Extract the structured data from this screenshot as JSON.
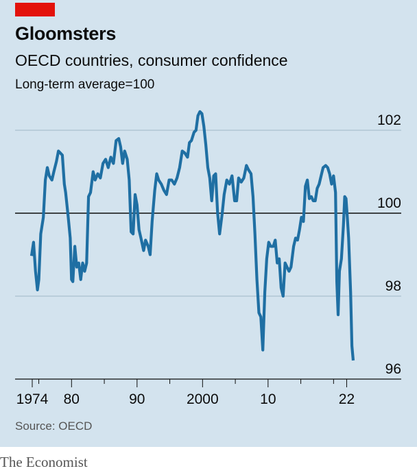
{
  "header": {
    "title": "Gloomsters",
    "subtitle": "OECD countries, consumer confidence",
    "note": "Long-term average=100"
  },
  "footer": {
    "source": "Source: OECD",
    "brand": "The Economist"
  },
  "colors": {
    "background": "#d3e3ee",
    "line": "#1f6fa3",
    "accent_tag": "#e3120b",
    "grid": "#9fb7c5",
    "baseline": "#0c0c0c"
  },
  "chart_data": {
    "type": "line",
    "title": "Gloomsters",
    "subtitle": "OECD countries, consumer confidence",
    "ylabel": "Long-term average=100",
    "ylim": [
      96,
      102
    ],
    "yticks": [
      96,
      98,
      100,
      102
    ],
    "reference_line": 100,
    "xlim": [
      1973.5,
      2023
    ],
    "xticks": [
      1974,
      1980,
      1990,
      2000,
      2010,
      2022
    ],
    "xtick_labels": [
      "1974",
      "80",
      "90",
      "2000",
      "10",
      "22"
    ],
    "grid": "horizontal",
    "series": [
      {
        "values": [
          [
            1973.9,
            98.97
          ],
          [
            1974.2,
            99.3
          ],
          [
            1974.5,
            98.6
          ],
          [
            1974.8,
            98.15
          ],
          [
            1975.0,
            98.4
          ],
          [
            1975.3,
            99.5
          ],
          [
            1975.7,
            99.9
          ],
          [
            1976.0,
            100.8
          ],
          [
            1976.3,
            101.1
          ],
          [
            1976.6,
            100.9
          ],
          [
            1977.0,
            100.8
          ],
          [
            1977.3,
            101.0
          ],
          [
            1977.7,
            101.25
          ],
          [
            1978.0,
            101.5
          ],
          [
            1978.3,
            101.45
          ],
          [
            1978.6,
            101.4
          ],
          [
            1978.9,
            100.7
          ],
          [
            1979.1,
            100.5
          ],
          [
            1979.5,
            99.9
          ],
          [
            1979.8,
            99.4
          ],
          [
            1980.0,
            98.4
          ],
          [
            1980.2,
            98.35
          ],
          [
            1980.5,
            99.2
          ],
          [
            1980.8,
            98.7
          ],
          [
            1981.1,
            98.8
          ],
          [
            1981.4,
            98.4
          ],
          [
            1981.7,
            98.8
          ],
          [
            1982.0,
            98.6
          ],
          [
            1982.3,
            98.8
          ],
          [
            1982.6,
            100.4
          ],
          [
            1982.9,
            100.5
          ],
          [
            1983.3,
            101.0
          ],
          [
            1983.6,
            100.8
          ],
          [
            1984.0,
            100.95
          ],
          [
            1984.4,
            100.85
          ],
          [
            1984.8,
            101.2
          ],
          [
            1985.2,
            101.3
          ],
          [
            1985.6,
            101.1
          ],
          [
            1986.0,
            101.35
          ],
          [
            1986.4,
            101.2
          ],
          [
            1986.8,
            101.75
          ],
          [
            1987.2,
            101.8
          ],
          [
            1987.5,
            101.6
          ],
          [
            1987.8,
            101.2
          ],
          [
            1988.1,
            101.5
          ],
          [
            1988.5,
            101.3
          ],
          [
            1988.8,
            100.8
          ],
          [
            1989.1,
            99.55
          ],
          [
            1989.4,
            99.5
          ],
          [
            1989.7,
            100.45
          ],
          [
            1990.0,
            100.2
          ],
          [
            1990.3,
            99.6
          ],
          [
            1990.6,
            99.4
          ],
          [
            1991.0,
            99.1
          ],
          [
            1991.3,
            99.35
          ],
          [
            1991.7,
            99.2
          ],
          [
            1992.0,
            99.0
          ],
          [
            1992.3,
            99.8
          ],
          [
            1992.7,
            100.55
          ],
          [
            1993.0,
            100.95
          ],
          [
            1993.3,
            100.8
          ],
          [
            1993.7,
            100.7
          ],
          [
            1994.1,
            100.55
          ],
          [
            1994.5,
            100.45
          ],
          [
            1994.9,
            100.8
          ],
          [
            1995.3,
            100.8
          ],
          [
            1995.7,
            100.7
          ],
          [
            1996.1,
            100.85
          ],
          [
            1996.5,
            101.1
          ],
          [
            1996.9,
            101.5
          ],
          [
            1997.3,
            101.45
          ],
          [
            1997.7,
            101.35
          ],
          [
            1998.0,
            101.7
          ],
          [
            1998.3,
            101.75
          ],
          [
            1998.7,
            101.95
          ],
          [
            1999.0,
            102.0
          ],
          [
            1999.3,
            102.35
          ],
          [
            1999.6,
            102.45
          ],
          [
            1999.9,
            102.4
          ],
          [
            2000.2,
            102.1
          ],
          [
            2000.5,
            101.65
          ],
          [
            2000.8,
            101.1
          ],
          [
            2001.1,
            100.85
          ],
          [
            2001.4,
            100.3
          ],
          [
            2001.7,
            100.9
          ],
          [
            2002.0,
            100.95
          ],
          [
            2002.3,
            100.0
          ],
          [
            2002.6,
            99.5
          ],
          [
            2003.0,
            100.0
          ],
          [
            2003.3,
            100.45
          ],
          [
            2003.7,
            100.8
          ],
          [
            2004.1,
            100.7
          ],
          [
            2004.5,
            100.9
          ],
          [
            2004.9,
            100.3
          ],
          [
            2005.2,
            100.3
          ],
          [
            2005.5,
            100.85
          ],
          [
            2005.9,
            100.75
          ],
          [
            2006.3,
            100.85
          ],
          [
            2006.7,
            101.15
          ],
          [
            2007.0,
            101.05
          ],
          [
            2007.4,
            100.95
          ],
          [
            2007.7,
            100.4
          ],
          [
            2008.0,
            99.5
          ],
          [
            2008.3,
            98.4
          ],
          [
            2008.6,
            97.6
          ],
          [
            2008.9,
            97.5
          ],
          [
            2009.2,
            96.7
          ],
          [
            2009.5,
            98.1
          ],
          [
            2009.8,
            98.9
          ],
          [
            2010.1,
            99.3
          ],
          [
            2010.4,
            99.2
          ],
          [
            2010.8,
            99.2
          ],
          [
            2011.1,
            99.35
          ],
          [
            2011.4,
            98.8
          ],
          [
            2011.7,
            98.9
          ],
          [
            2012.0,
            98.2
          ],
          [
            2012.3,
            98.0
          ],
          [
            2012.6,
            98.8
          ],
          [
            2012.9,
            98.7
          ],
          [
            2013.2,
            98.6
          ],
          [
            2013.5,
            98.7
          ],
          [
            2013.9,
            99.2
          ],
          [
            2014.2,
            99.4
          ],
          [
            2014.5,
            99.35
          ],
          [
            2014.8,
            99.6
          ],
          [
            2015.1,
            99.9
          ],
          [
            2015.4,
            99.8
          ],
          [
            2015.7,
            100.65
          ],
          [
            2016.0,
            100.8
          ],
          [
            2016.3,
            100.35
          ],
          [
            2016.6,
            100.4
          ],
          [
            2016.9,
            100.3
          ],
          [
            2017.2,
            100.3
          ],
          [
            2017.5,
            100.6
          ],
          [
            2017.8,
            100.7
          ],
          [
            2018.1,
            100.9
          ],
          [
            2018.4,
            101.1
          ],
          [
            2018.8,
            101.15
          ],
          [
            2019.1,
            101.1
          ],
          [
            2019.4,
            100.95
          ],
          [
            2019.7,
            100.7
          ],
          [
            2020.0,
            100.9
          ],
          [
            2020.3,
            100.5
          ],
          [
            2020.5,
            98.35
          ],
          [
            2020.7,
            97.55
          ],
          [
            2020.9,
            98.6
          ],
          [
            2021.2,
            98.9
          ],
          [
            2021.5,
            99.7
          ],
          [
            2021.7,
            100.4
          ],
          [
            2021.9,
            100.35
          ],
          [
            2022.1,
            99.9
          ],
          [
            2022.3,
            99.4
          ],
          [
            2022.6,
            98.1
          ],
          [
            2022.8,
            96.8
          ],
          [
            2023.0,
            96.45
          ]
        ]
      }
    ]
  }
}
